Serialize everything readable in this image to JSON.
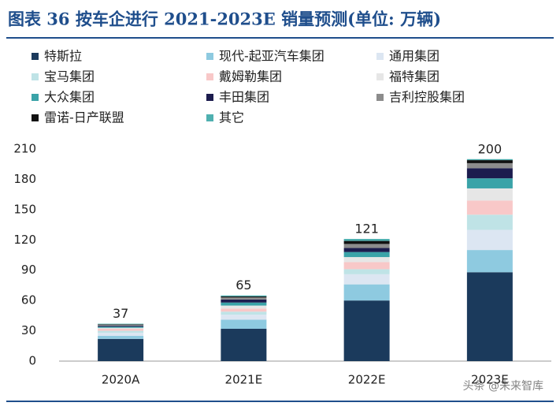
{
  "chart_data": {
    "type": "bar",
    "stacked": true,
    "title": "图表 36  按车企进行 2021-2023E 销量预测(单位: 万辆)",
    "categories": [
      "2020A",
      "2021E",
      "2022E",
      "2023E"
    ],
    "series": [
      {
        "name": "特斯拉",
        "color": "#1b3a5c",
        "values": [
          22,
          32,
          60,
          88
        ]
      },
      {
        "name": "现代-起亚汽车集团",
        "color": "#8ecae0",
        "values": [
          3,
          9,
          16,
          22
        ]
      },
      {
        "name": "通用集团",
        "color": "#dce6f2",
        "values": [
          3,
          5,
          10,
          20
        ]
      },
      {
        "name": "宝马集团",
        "color": "#bfe3e6",
        "values": [
          2,
          3,
          5,
          15
        ]
      },
      {
        "name": "戴姆勒集团",
        "color": "#f8c8c8",
        "values": [
          2,
          3,
          7,
          14
        ]
      },
      {
        "name": "福特集团",
        "color": "#e6e6e6",
        "values": [
          1,
          3,
          5,
          12
        ]
      },
      {
        "name": "大众集团",
        "color": "#3aa3a8",
        "values": [
          1,
          3,
          5,
          10
        ]
      },
      {
        "name": "丰田集团",
        "color": "#1c1c4e",
        "values": [
          1,
          3,
          4,
          10
        ]
      },
      {
        "name": "吉利控股集团",
        "color": "#8c8c8c",
        "values": [
          1,
          2,
          4,
          5
        ]
      },
      {
        "name": "雷诺-日产联盟",
        "color": "#111111",
        "values": [
          0.5,
          1,
          3,
          3
        ]
      },
      {
        "name": "其它",
        "color": "#4fb0b0",
        "values": [
          0.5,
          1,
          2,
          1
        ]
      }
    ],
    "totals": [
      37,
      65,
      121,
      200
    ],
    "ylim": [
      0,
      210
    ],
    "yticks": [
      0,
      30,
      60,
      90,
      120,
      150,
      180,
      210
    ],
    "watermark": "头条 @未来智库"
  }
}
